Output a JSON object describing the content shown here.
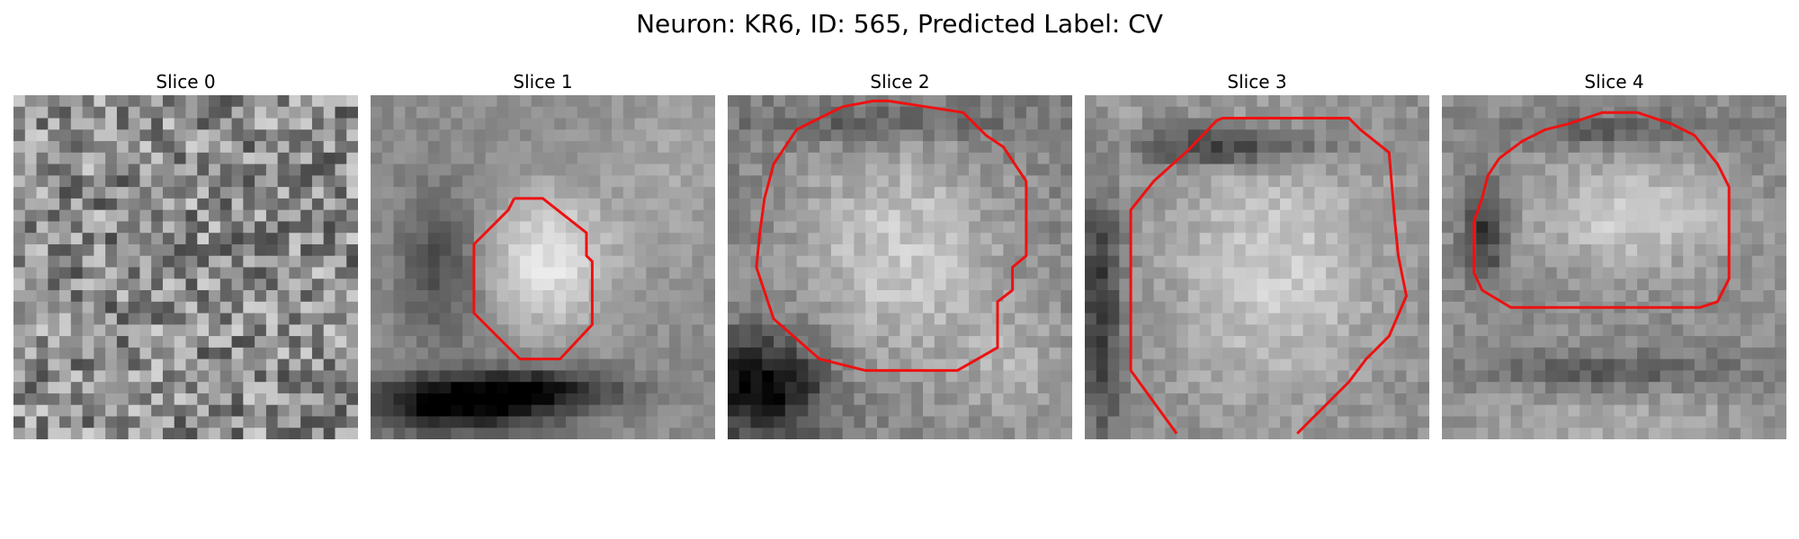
{
  "title": "Neuron: KR6, ID: 565, Predicted Label: CV",
  "slices": [
    {
      "label": "Slice 0"
    },
    {
      "label": "Slice 1"
    },
    {
      "label": "Slice 2"
    },
    {
      "label": "Slice 3"
    },
    {
      "label": "Slice 4"
    }
  ],
  "contour_color": "#ee1111"
}
